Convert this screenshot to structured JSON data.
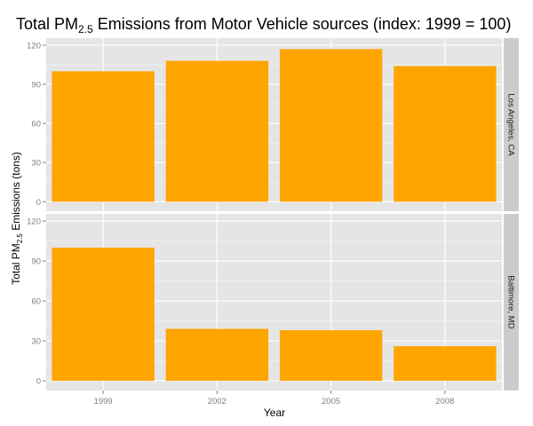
{
  "chart_data": {
    "type": "bar",
    "title": "Total PM",
    "title_sub": "2.5",
    "title_rest": " Emissions from Motor Vehicle sources (index: 1999 = 100)",
    "xlabel": "Year",
    "ylabel_main": "Total PM",
    "ylabel_sub": "2.5",
    "ylabel_rest": " Emissions (tons)",
    "categories": [
      "1999",
      "2002",
      "2005",
      "2008"
    ],
    "ylim": [
      0,
      120
    ],
    "yticks": [
      0,
      30,
      60,
      90,
      120
    ],
    "grid": true,
    "bar_color": "#FFA500",
    "panel_bg": "#E5E5E5",
    "strip_bg": "#CCCCCC",
    "panels": [
      {
        "label": "Los Angeles, CA",
        "values": [
          100,
          108,
          117,
          104
        ]
      },
      {
        "label": "Baltimore, MD",
        "values": [
          100,
          39,
          38,
          26
        ]
      }
    ]
  }
}
